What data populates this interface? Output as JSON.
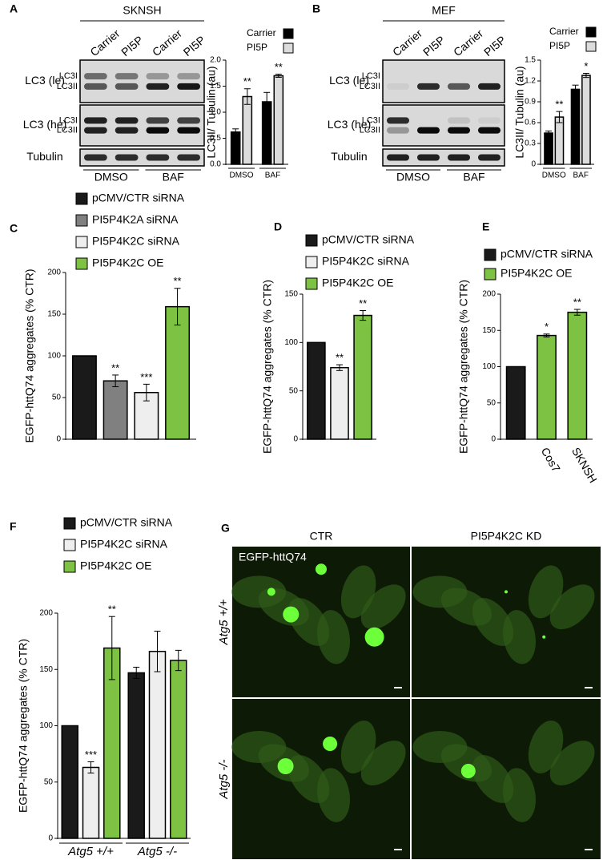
{
  "blots": [
    {
      "panel": "A",
      "title": "SKNSH",
      "lanes": [
        "Carrier",
        "PI5P",
        "Carrier",
        "PI5P"
      ],
      "rows": [
        {
          "name": "LC3 (le)",
          "bands": [
            "LC3I",
            "LC3II"
          ]
        },
        {
          "name": "LC3 (he)",
          "bands": [
            "LC3I",
            "LC3II"
          ]
        },
        {
          "name": "Tubulin"
        }
      ],
      "groups": [
        "DMSO",
        "BAF"
      ]
    },
    {
      "panel": "B",
      "title": "MEF",
      "lanes": [
        "Carrier",
        "PI5P",
        "Carrier",
        "PI5P"
      ],
      "rows": [
        {
          "name": "LC3 (le)",
          "bands": [
            "LC3I",
            "LC3II"
          ]
        },
        {
          "name": "LC3 (he)",
          "bands": [
            "LC3I",
            "LC3II"
          ]
        },
        {
          "name": "Tubulin"
        }
      ],
      "groups": [
        "DMSO",
        "BAF"
      ]
    }
  ],
  "chart_data": [
    {
      "type": "bar",
      "y_label": "LC3II/ Tubulin (au)",
      "categories": [
        "DMSO",
        "BAF"
      ],
      "series": [
        {
          "name": "Carrier",
          "color": "#000000",
          "values": [
            0.62,
            1.2
          ],
          "errors": [
            0.06,
            0.18
          ]
        },
        {
          "name": "PI5P",
          "color": "#dcdcdc",
          "values": [
            1.3,
            1.7
          ],
          "errors": [
            0.15,
            0.03
          ],
          "significance": [
            "**",
            "**"
          ]
        }
      ],
      "ylim": [
        0,
        2
      ],
      "yticks": [
        {
          "value": 0,
          "label": "0.0"
        },
        {
          "value": 0.5,
          "label": "0.5"
        },
        {
          "value": 1,
          "label": "1.0"
        },
        {
          "value": 1.5,
          "label": "1.5"
        },
        {
          "value": 2,
          "label": "2.0"
        }
      ]
    },
    {
      "type": "bar",
      "y_label": "LC3II/ Tubulin (au)",
      "categories": [
        "DMSO",
        "BAF"
      ],
      "series": [
        {
          "name": "Carrier",
          "color": "#000000",
          "values": [
            0.45,
            1.08
          ],
          "errors": [
            0.03,
            0.06
          ]
        },
        {
          "name": "PI5P",
          "color": "#dcdcdc",
          "values": [
            0.68,
            1.28
          ],
          "errors": [
            0.08,
            0.03
          ],
          "significance": [
            "**",
            "*"
          ]
        }
      ],
      "ylim": [
        0,
        1.5
      ],
      "yticks": [
        0,
        0.3,
        0.6,
        0.9,
        1.2,
        1.5
      ]
    },
    {
      "type": "bar",
      "panel": "C",
      "y_label": "EGFP-httQ74 aggregates (% CTR)",
      "categories": [
        null
      ],
      "series": [
        {
          "name": "pCMV/CTR siRNA",
          "color": "#1a1a1a",
          "values": [
            100
          ],
          "errors": [
            0
          ]
        },
        {
          "name": "PI5P4K2A siRNA",
          "color": "#808080",
          "values": [
            70
          ],
          "errors": [
            7
          ],
          "significance": [
            "**"
          ]
        },
        {
          "name": "PI5P4K2C siRNA",
          "color": "#eeeeee",
          "values": [
            56
          ],
          "errors": [
            10
          ],
          "significance": [
            "***"
          ]
        },
        {
          "name": "PI5P4K2C OE",
          "color": "#7dc242",
          "values": [
            159
          ],
          "errors": [
            22
          ],
          "significance": [
            "**"
          ]
        }
      ],
      "ylim": [
        0,
        200
      ],
      "yticks": [
        0,
        50,
        100,
        150,
        200
      ]
    },
    {
      "type": "bar",
      "panel": "D",
      "y_label": "EGFP-httQ74 aggregates (% CTR)",
      "categories": [
        null
      ],
      "series": [
        {
          "name": "pCMV/CTR siRNA",
          "color": "#1a1a1a",
          "values": [
            100
          ],
          "errors": [
            0
          ]
        },
        {
          "name": "PI5P4K2C siRNA",
          "color": "#eeeeee",
          "values": [
            74
          ],
          "errors": [
            3
          ],
          "significance": [
            "**"
          ]
        },
        {
          "name": "PI5P4K2C OE",
          "color": "#7dc242",
          "values": [
            128
          ],
          "errors": [
            5
          ],
          "significance": [
            "**"
          ]
        }
      ],
      "ylim": [
        0,
        150
      ],
      "yticks": [
        0,
        50,
        100,
        150
      ]
    },
    {
      "type": "bar",
      "panel": "E",
      "y_label": "EGFP-httQ74 aggregates (% CTR)",
      "categories": [
        null,
        "Cos7",
        "SKNSH"
      ],
      "series": [
        {
          "name": "pCMV/CTR siRNA",
          "color": "#1a1a1a",
          "values": [
            100,
            null,
            null
          ],
          "errors": [
            0,
            null,
            null
          ]
        },
        {
          "name": "PI5P4K2C OE",
          "color": "#7dc242",
          "values": [
            null,
            143,
            175
          ],
          "errors": [
            null,
            2,
            4
          ],
          "significance": [
            null,
            "*",
            "**"
          ]
        }
      ],
      "ylim": [
        0,
        200
      ],
      "yticks": [
        0,
        50,
        100,
        150,
        200
      ]
    },
    {
      "type": "bar",
      "panel": "F",
      "y_label": "EGFP-httQ74 aggregates (% CTR)",
      "categories": [
        "Atg5 +/+",
        "Atg5 -/-"
      ],
      "series": [
        {
          "name": "pCMV/CTR siRNA",
          "color": "#1a1a1a",
          "values": [
            100,
            147
          ],
          "errors": [
            0,
            5
          ]
        },
        {
          "name": "PI5P4K2C siRNA",
          "color": "#eeeeee",
          "values": [
            63,
            166
          ],
          "errors": [
            5,
            18
          ],
          "significance": [
            "***",
            null
          ]
        },
        {
          "name": "PI5P4K2C OE",
          "color": "#7dc242",
          "values": [
            169,
            158
          ],
          "errors": [
            28,
            9
          ],
          "significance": [
            "**",
            null
          ]
        }
      ],
      "ylim": [
        0,
        200
      ],
      "yticks": [
        0,
        50,
        100,
        150,
        200
      ]
    }
  ],
  "microscopy": {
    "panel": "G",
    "columns": [
      "CTR",
      "PI5P4K2C KD"
    ],
    "rows": [
      "Atg5 +/+",
      "Atg5 -/-"
    ],
    "inset": "EGFP-httQ74"
  }
}
